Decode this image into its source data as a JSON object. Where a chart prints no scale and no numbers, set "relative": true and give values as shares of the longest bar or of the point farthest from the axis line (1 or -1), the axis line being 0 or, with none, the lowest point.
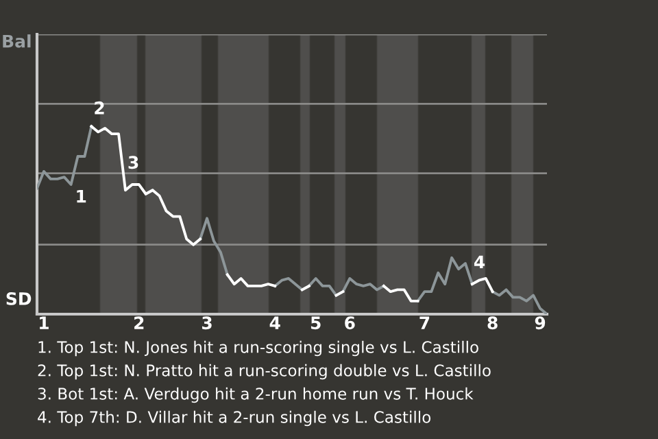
{
  "chart_data": {
    "type": "line",
    "relative": true,
    "categories": [
      null,
      "1",
      null,
      null,
      null,
      null,
      null,
      null,
      null,
      null,
      null,
      null,
      null,
      null,
      null,
      "2",
      null,
      null,
      null,
      null,
      null,
      null,
      null,
      null,
      null,
      "3",
      null,
      null,
      null,
      null,
      null,
      null,
      null,
      null,
      null,
      "4",
      null,
      null,
      null,
      null,
      null,
      "5",
      null,
      null,
      null,
      null,
      "6",
      null,
      null,
      null,
      null,
      null,
      null,
      null,
      null,
      null,
      null,
      "7",
      null,
      null,
      null,
      null,
      null,
      null,
      null,
      null,
      null,
      "8",
      null,
      null,
      null,
      null,
      null,
      null,
      "9",
      null
    ],
    "marker": "none",
    "line_style": "solid",
    "ref_lines": [
      {
        "axis": "y",
        "value": 0.37,
        "color": "#8a8a88"
      },
      {
        "axis": "y",
        "value": 0.75,
        "color": "#8a8a88"
      },
      {
        "axis": "y",
        "value": 1.12,
        "color": "#8a8a88"
      },
      {
        "axis": "y",
        "value": 1.49,
        "color": "#8a8a88"
      }
    ],
    "series": [
      {
        "color": "#8d9699",
        "values": [
          0.67,
          0.76,
          0.72,
          0.72,
          0.73,
          0.69,
          0.84,
          0.84,
          1,
          null,
          null,
          null,
          null,
          null,
          null,
          null,
          0.64,
          0.66,
          null,
          null,
          null,
          null,
          null,
          null,
          0.4,
          0.51,
          0.39,
          0.33,
          0.21,
          null,
          null,
          null,
          null,
          null,
          null,
          0.15,
          0.18,
          0.19,
          0.16,
          0.13,
          0.15,
          0.19,
          0.15,
          0.15,
          0.1,
          0.12,
          0.19,
          0.16,
          0.15,
          0.16,
          0.13,
          0.15,
          null,
          null,
          null,
          null,
          0.07,
          0.12,
          0.12,
          0.22,
          0.16,
          0.3,
          0.24,
          0.27,
          0.16,
          null,
          null,
          0.12,
          0.1,
          0.13,
          0.09,
          0.09,
          0.07,
          0.1,
          0.03,
          0
        ]
      },
      {
        "color": "#ffffff",
        "values": [
          null,
          null,
          null,
          null,
          null,
          null,
          null,
          null,
          1,
          0.97,
          0.99,
          0.96,
          0.96,
          0.66,
          0.69,
          0.69,
          0.64,
          0.66,
          0.63,
          0.55,
          0.52,
          0.52,
          0.4,
          0.37,
          0.4,
          null,
          null,
          null,
          0.21,
          0.16,
          0.19,
          0.15,
          0.15,
          0.15,
          0.16,
          0.15,
          null,
          null,
          null,
          0.13,
          0.15,
          null,
          null,
          null,
          0.1,
          0.12,
          null,
          null,
          null,
          null,
          null,
          0.15,
          0.12,
          0.13,
          0.13,
          0.07,
          0.07,
          null,
          null,
          null,
          null,
          null,
          null,
          null,
          0.16,
          0.18,
          0.19,
          0.12,
          null,
          null,
          null,
          null,
          null,
          null,
          null,
          null
        ]
      }
    ],
    "annotations": [
      "Bal",
      "SD",
      "1",
      "2",
      "3",
      "4",
      "1. Top 1st: N. Jones hit a run-scoring single vs L. Castillo",
      "2. Top 1st: N. Pratto hit a run-scoring double vs L. Castillo",
      "3. Bot 1st: A. Verdugo hit a 2-run home run vs T. Houck",
      "4. Top 7th: D. Villar hit a 2-run single vs L. Castillo"
    ]
  }
}
